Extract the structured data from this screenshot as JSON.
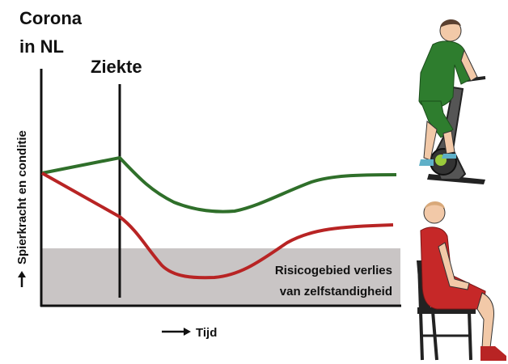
{
  "title": {
    "lines": [
      "Corona",
      "in NL"
    ]
  },
  "event_label": "Ziekte",
  "y_axis_label": "Spierkracht en conditie",
  "x_axis_label": "Tijd",
  "zone_label": {
    "lines": [
      "Risicogebied verlies",
      "van zelfstandigheid"
    ]
  }
}
